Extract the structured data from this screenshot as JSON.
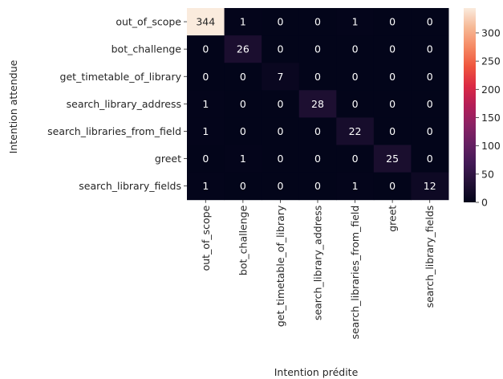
{
  "chart_data": {
    "type": "heatmap",
    "title": "",
    "xlabel": "Intention prédite",
    "ylabel": "Intention attendue",
    "rows": [
      "out_of_scope",
      "bot_challenge",
      "get_timetable_of_library",
      "search_library_address",
      "search_libraries_from_field",
      "greet",
      "search_library_fields"
    ],
    "columns": [
      "out_of_scope",
      "bot_challenge",
      "get_timetable_of_library",
      "search_library_address",
      "search_libraries_from_field",
      "greet",
      "search_library_fields"
    ],
    "values": [
      [
        344,
        1,
        0,
        0,
        1,
        0,
        0
      ],
      [
        0,
        26,
        0,
        0,
        0,
        0,
        0
      ],
      [
        0,
        0,
        7,
        0,
        0,
        0,
        0
      ],
      [
        1,
        0,
        0,
        28,
        0,
        0,
        0
      ],
      [
        1,
        0,
        0,
        0,
        22,
        0,
        0
      ],
      [
        0,
        1,
        0,
        0,
        0,
        25,
        0
      ],
      [
        1,
        0,
        0,
        0,
        1,
        0,
        12
      ]
    ],
    "colorbar": {
      "range": [
        0,
        344
      ],
      "ticks": [
        0,
        50,
        100,
        150,
        200,
        250,
        300
      ],
      "colormap": "rocket"
    }
  }
}
